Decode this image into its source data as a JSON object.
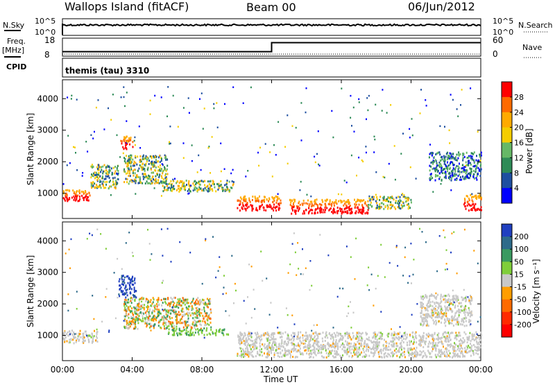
{
  "header": {
    "site": "Wallops Island (fitACF)",
    "beam": "Beam 00",
    "date": "06/Jun/2012"
  },
  "panels": {
    "nsky_label": "N.Sky",
    "nsearch_label": "N.Search",
    "freq_label": "Freq.",
    "freq_unit": "[MHz]",
    "nave_label": "Nave",
    "cpid_label": "CPID",
    "cpid_text": "themis (tau) 3310",
    "noise_ticks_left": [
      "10^5",
      "10^0"
    ],
    "noise_ticks_right": [
      "10^5",
      "10^0"
    ],
    "freq_ticks": [
      "18",
      "8"
    ],
    "nave_ticks": [
      "60",
      "0"
    ],
    "freq_series": {
      "x_hours": [
        0,
        12,
        12,
        24
      ],
      "values_mhz": [
        10.5,
        10.5,
        15.5,
        15.5
      ]
    },
    "nave_series": {
      "x_hours": [
        0,
        24
      ],
      "values": [
        7,
        7
      ]
    }
  },
  "chart_data": [
    {
      "type": "heatmap",
      "title": "",
      "xlabel": "Time UT",
      "ylabel": "Slant Range [km]",
      "xlim": [
        0,
        24
      ],
      "ylim": [
        200,
        4600
      ],
      "yticks": [
        "1000",
        "2000",
        "3000",
        "4000"
      ],
      "xticks": [
        "00:00",
        "04:00",
        "08:00",
        "12:00",
        "16:00",
        "20:00",
        "00:00"
      ],
      "colorbar_label": "Power [dB]",
      "colorbar_ticks": [
        "28",
        "24",
        "20",
        "16",
        "12",
        "8",
        "4"
      ],
      "colorbar_colors": [
        "#ff0000",
        "#ff6a00",
        "#ffaa00",
        "#f5cd00",
        "#66b866",
        "#2e8b57",
        "#1e4fa0",
        "#0000ff"
      ],
      "features": [
        {
          "t0": 0.0,
          "t1": 1.6,
          "r0": 750,
          "r1": 1100,
          "level": "high"
        },
        {
          "t0": 1.6,
          "t1": 3.2,
          "r0": 1150,
          "r1": 1900,
          "level": "mid"
        },
        {
          "t0": 3.3,
          "t1": 4.0,
          "r0": 2400,
          "r1": 2800,
          "level": "high"
        },
        {
          "t0": 3.5,
          "t1": 6.0,
          "r0": 1300,
          "r1": 2200,
          "level": "mid"
        },
        {
          "t0": 5.5,
          "t1": 9.8,
          "r0": 1050,
          "r1": 1400,
          "level": "mid"
        },
        {
          "t0": 10.0,
          "t1": 12.5,
          "r0": 450,
          "r1": 900,
          "level": "high"
        },
        {
          "t0": 13.0,
          "t1": 17.5,
          "r0": 350,
          "r1": 800,
          "level": "high"
        },
        {
          "t0": 17.5,
          "t1": 20.0,
          "r0": 500,
          "r1": 900,
          "level": "mid"
        },
        {
          "t0": 21.0,
          "t1": 24.0,
          "r0": 1400,
          "r1": 2300,
          "level": "low"
        },
        {
          "t0": 23.0,
          "t1": 24.0,
          "r0": 450,
          "r1": 950,
          "level": "high"
        }
      ]
    },
    {
      "type": "heatmap",
      "title": "",
      "xlabel": "Time UT",
      "ylabel": "Slant Range [km]",
      "xlim": [
        0,
        24
      ],
      "ylim": [
        200,
        4600
      ],
      "yticks": [
        "1000",
        "2000",
        "3000",
        "4000"
      ],
      "xticks": [
        "00:00",
        "04:00",
        "08:00",
        "12:00",
        "16:00",
        "20:00",
        "00:00"
      ],
      "colorbar_label": "Velocity [m s⁻¹]",
      "colorbar_ticks": [
        "200",
        "100",
        "50",
        "15",
        "-15",
        "-50",
        "-100",
        "-200"
      ],
      "colorbar_colors": [
        "#2040c0",
        "#2e6b8a",
        "#3a9a60",
        "#7fce3a",
        "#c8c8c8",
        "#ff9d00",
        "#ff6a00",
        "#ff2a00",
        "#ff0000"
      ],
      "features": [
        {
          "t0": 0.0,
          "t1": 2.0,
          "r0": 750,
          "r1": 1150,
          "vel": "zero"
        },
        {
          "t0": 3.2,
          "t1": 4.2,
          "r0": 2200,
          "r1": 2900,
          "vel": "toward"
        },
        {
          "t0": 3.5,
          "t1": 8.5,
          "r0": 1200,
          "r1": 2200,
          "vel": "mixed"
        },
        {
          "t0": 6.0,
          "t1": 9.5,
          "r0": 1000,
          "r1": 1200,
          "vel": "positive"
        },
        {
          "t0": 10.0,
          "t1": 24.0,
          "r0": 300,
          "r1": 1100,
          "vel": "zero"
        },
        {
          "t0": 20.5,
          "t1": 23.5,
          "r0": 1300,
          "r1": 2300,
          "vel": "zero"
        }
      ]
    }
  ]
}
